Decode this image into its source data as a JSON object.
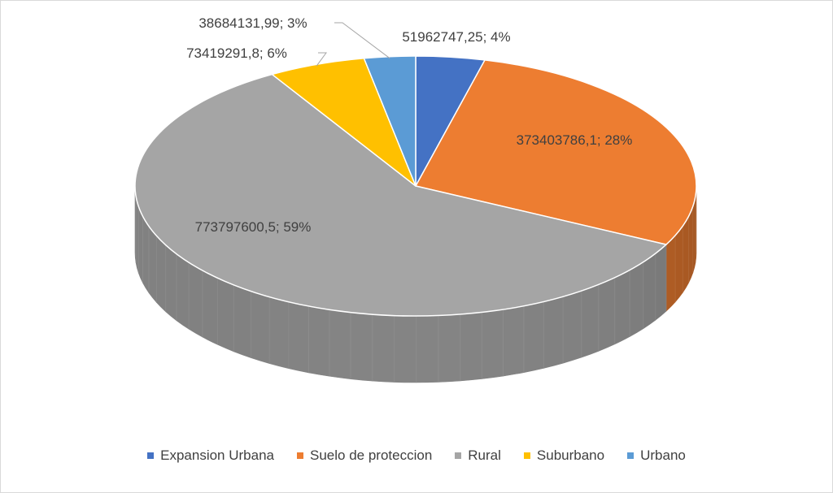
{
  "chart_data": {
    "type": "pie",
    "style": "3d-pie",
    "title": "",
    "categories": [
      "Expansion Urbana",
      "Suelo de proteccion",
      "Rural",
      "Suburbano",
      "Urbano"
    ],
    "values": [
      51962747.25,
      373403786.1,
      773797600.5,
      73419291.8,
      38684131.99
    ],
    "percent_labels": [
      "4%",
      "28%",
      "59%",
      "6%",
      "3%"
    ],
    "data_labels": [
      "51962747,25; 4%",
      "373403786,1; 28%",
      "773797600,5; 59%",
      "73419291,8; 6%",
      "38684131,99; 3%"
    ],
    "colors": [
      "#4472C4",
      "#ED7D31",
      "#A5A5A5",
      "#FFC000",
      "#5B9BD5"
    ],
    "legend_position": "bottom"
  }
}
